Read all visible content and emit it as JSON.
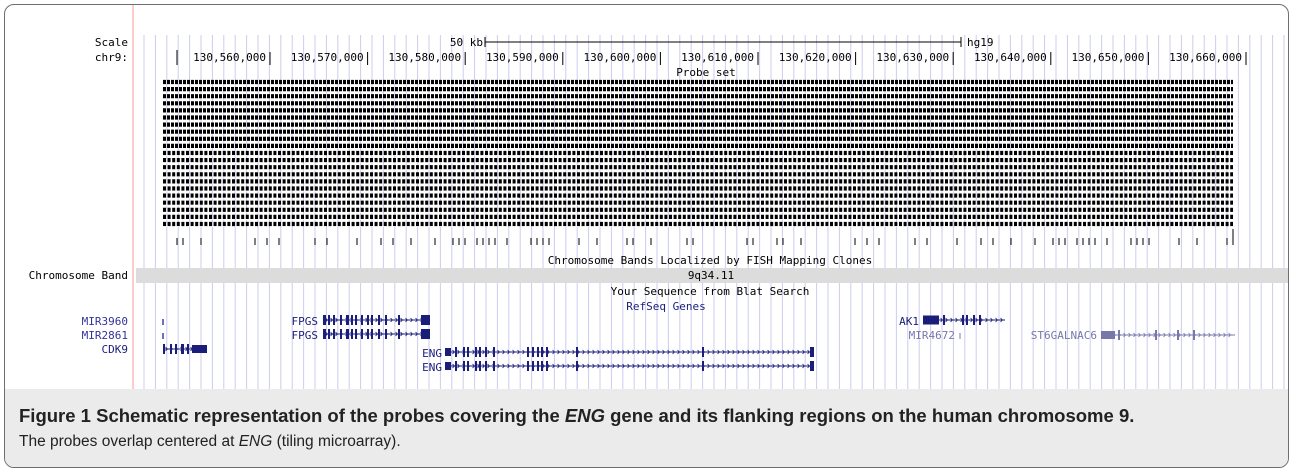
{
  "browser": {
    "scale_label": "Scale",
    "chr_label": "chr9:",
    "scale_bar_text": "50 kb",
    "assembly": "hg19",
    "positions": [
      "130,560,000",
      "130,570,000",
      "130,580,000",
      "130,590,000",
      "130,600,000",
      "130,610,000",
      "130,620,000",
      "130,630,000",
      "130,640,000",
      "130,650,000",
      "130,660,000"
    ],
    "probe_track_title": "Probe set",
    "fish_track_title": "Chromosome Bands Localized by FISH Mapping Clones",
    "chromosome_band_label": "Chromosome Band",
    "band_name": "9q34.11",
    "blat_track_title": "Your Sequence from Blat Search",
    "refseq_track_title": "RefSeq Genes",
    "gene_labels": {
      "mir3960": "MIR3960",
      "mir2861": "MIR2861",
      "cdk9": "CDK9",
      "fpgs_1": "FPGS",
      "fpgs_2": "FPGS",
      "eng_1": "ENG",
      "eng_2": "ENG",
      "ak1": "AK1",
      "mir4672": "MIR4672",
      "st6galnac6": "ST6GALNAC6"
    },
    "colors": {
      "gene": "#1b1d7a",
      "mir_label": "#333399",
      "noncoding": "#7777aa",
      "grid": "#ccccee",
      "band": "#dcdcdc",
      "red_line": "#ff9999"
    }
  },
  "caption": {
    "title_prefix": "Figure 1 Schematic representation of the probes covering the ",
    "title_gene": "ENG",
    "title_suffix": " gene and its flanking regions on the human chromosome 9.",
    "text_prefix": "The probes overlap centered at ",
    "text_gene": "ENG",
    "text_suffix": " (tiling microarray)."
  }
}
